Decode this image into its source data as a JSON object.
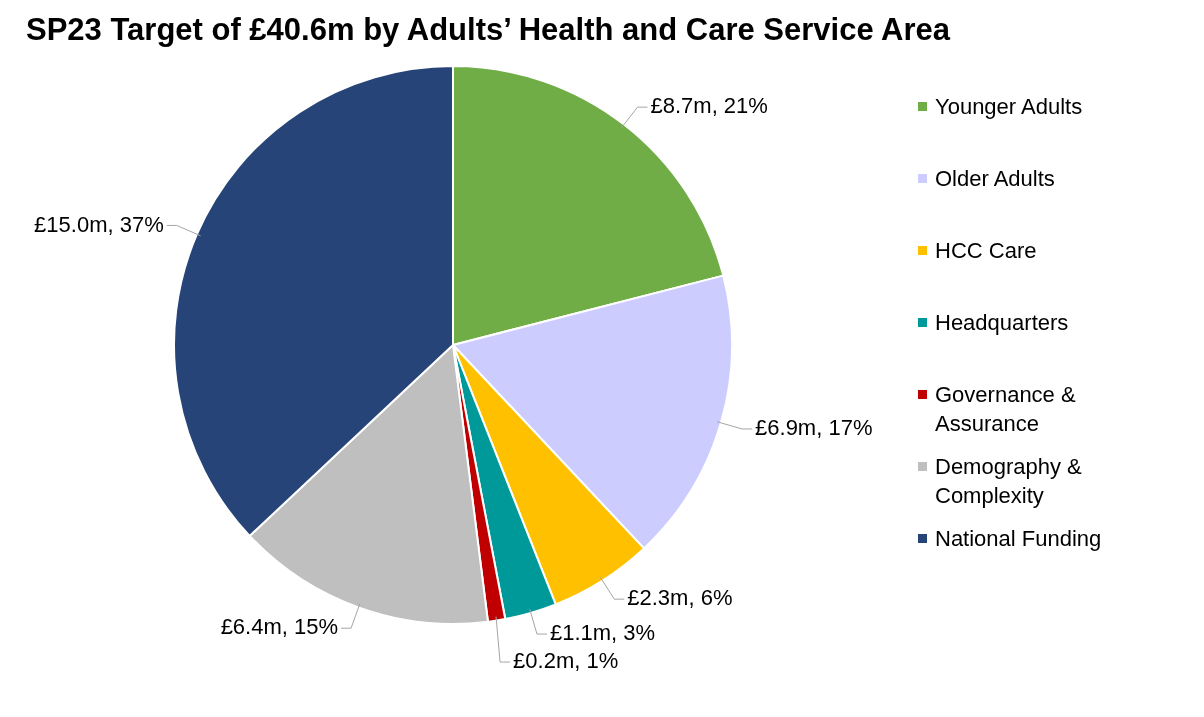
{
  "chart_data": {
    "type": "pie",
    "title": "SP23 Target of £40.6m by Adults’ Health and Care Service Area",
    "categories": [
      "Younger Adults",
      "Older Adults",
      "HCC Care",
      "Headquarters",
      "Governance & Assurance",
      "Demography & Complexity",
      "National Funding"
    ],
    "values": [
      21,
      17,
      6,
      3,
      1,
      15,
      37
    ],
    "colors": [
      "#70ad47",
      "#ccccff",
      "#ffc000",
      "#009999",
      "#c00000",
      "#bfbfbf",
      "#264478"
    ],
    "value_labels": [
      "£8.7m, 21%",
      "£6.9m, 17%",
      "£2.3m, 6%",
      "£1.1m, 3%",
      "£0.2m, 1%",
      "£6.4m, 15%",
      "£15.0m, 37%"
    ],
    "legend": "right"
  }
}
